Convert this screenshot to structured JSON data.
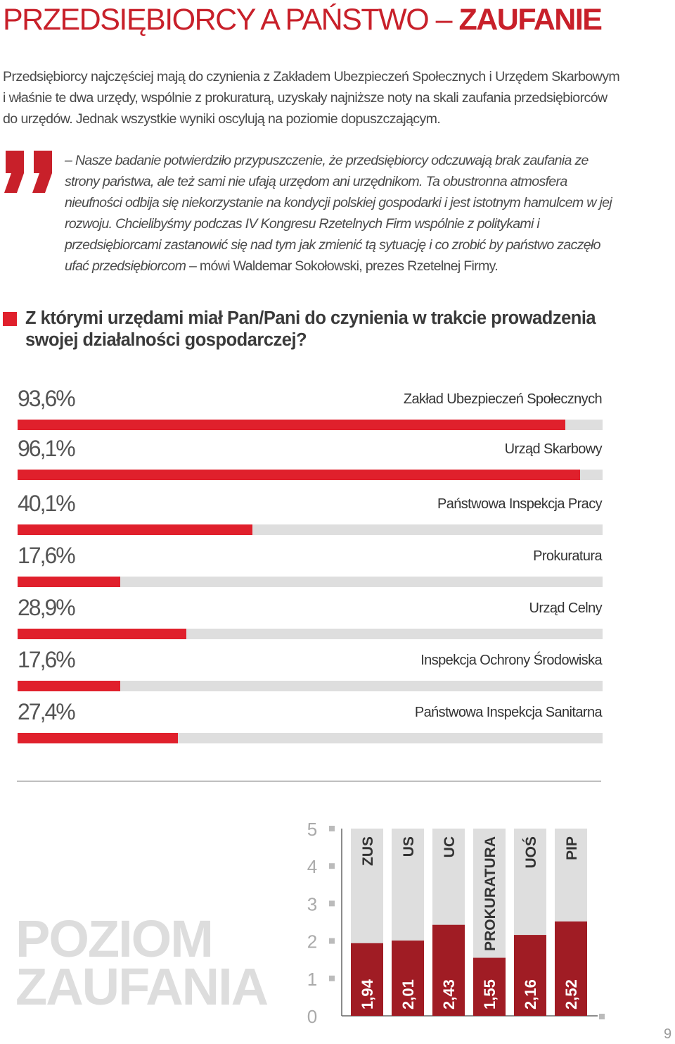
{
  "title": {
    "main": "PRZEDSIĘBIORCY A PAŃSTWO – ",
    "accent": "ZAUFANIE"
  },
  "intro": "Przedsiębiorcy najczęściej mają do czynienia z Zakładem Ubezpieczeń Społecznych i Urzędem Skarbowym i właśnie te dwa urzędy, wspólnie z prokuraturą, uzyskały najniższe noty na skali zaufania przedsiębiorców do urzędów. Jednak wszystkie wyniki oscylują na poziomie dopuszczającym.",
  "quote": {
    "text": "– Nasze badanie potwierdziło przypuszczenie, że przedsiębiorcy odczuwają brak zaufania ze strony państwa, ale też sami nie ufają urzędom ani urzędnikom. Ta obustronna atmosfera nieufności odbija się niekorzystanie na kondycji polskiej gospodarki i jest istotnym hamulcem w jej rozwoju. Chcielibyśmy podczas IV Kongresu Rzetelnych Firm wspólnie z politykami i przedsiębiorcami zastanowić się nad tym jak zmienić tą sytuację i co zrobić by państwo zaczęło ufać przedsiębiorcom",
    "attribution": " – mówi Waldemar Sokołowski, prezes Rzetelnej Firmy.",
    "mark_color": "#c8202a"
  },
  "question": "Z którymi urzędami miał Pan/Pani do czynienia w trakcie prowadzenia swojej działalności gospodarczej?",
  "poziom": {
    "line1": "POZIOM",
    "line2": "ZAUFANIA"
  },
  "page_number": "9",
  "colors": {
    "accent": "#e0202c",
    "dark_red": "#a01c24",
    "track": "#dedede"
  },
  "chart_data": [
    {
      "type": "bar",
      "orientation": "horizontal",
      "categories": [
        "Zakład Ubezpieczeń Społecznych",
        "Urząd Skarbowy",
        "Państwowa Inspekcja Pracy",
        "Prokuratura",
        "Urząd Celny",
        "Inspekcja Ochrony Środowiska",
        "Państwowa Inspekcja Sanitarna"
      ],
      "values": [
        93.6,
        96.1,
        40.1,
        17.6,
        28.9,
        17.6,
        27.4
      ],
      "value_labels": [
        "93,6%",
        "96,1%",
        "40,1%",
        "17,6%",
        "28,9%",
        "17,6%",
        "27,4%"
      ],
      "xlim": [
        0,
        100
      ]
    },
    {
      "type": "bar",
      "orientation": "vertical",
      "categories": [
        "ZUS",
        "US",
        "UC",
        "PROKURATURA",
        "UOŚ",
        "PIP"
      ],
      "values": [
        1.94,
        2.01,
        2.43,
        1.55,
        2.16,
        2.52
      ],
      "value_labels": [
        "1,94",
        "2,01",
        "2,43",
        "1,55",
        "2,16",
        "2,52"
      ],
      "yticks": [
        "0",
        "1",
        "2",
        "3",
        "4",
        "5"
      ],
      "ylim": [
        0,
        5
      ]
    }
  ]
}
